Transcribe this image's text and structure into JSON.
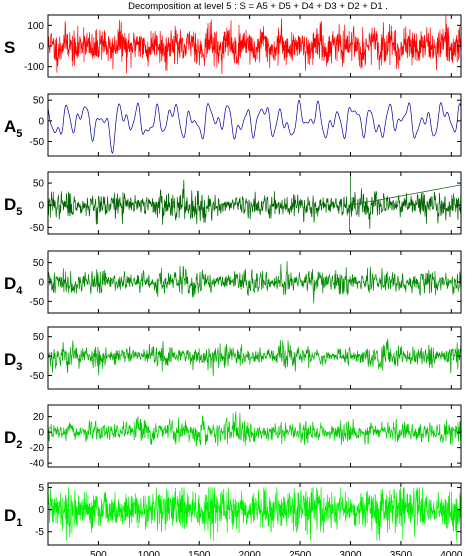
{
  "chart_data": {
    "type": "line",
    "title": "Decomposition at level 5 : S = A5 + D5 + D4 + D3 + D2 + D1 .",
    "xlim": [
      0,
      4096
    ],
    "x_ticks": [
      500,
      1000,
      1500,
      2000,
      2500,
      3000,
      3500,
      4000
    ],
    "series": [
      {
        "name": "S",
        "label_main": "S",
        "label_sub": "",
        "color": "#ff0000",
        "ylim": [
          -150,
          150
        ],
        "y_ticks": [
          100,
          0,
          -100
        ],
        "amplitude": 75,
        "kind": "noise_signal",
        "seed": 11
      },
      {
        "name": "A5",
        "label_main": "A",
        "label_sub": "5",
        "color": "#0000a0",
        "ylim": [
          -85,
          65
        ],
        "y_ticks": [
          50,
          0,
          -50
        ],
        "amplitude": 55,
        "kind": "smooth",
        "seed": 23
      },
      {
        "name": "D5",
        "label_main": "D",
        "label_sub": "5",
        "color": "#006400",
        "ylim": [
          -65,
          75
        ],
        "y_ticks": [
          50,
          0,
          -50
        ],
        "amplitude": 55,
        "kind": "detail",
        "seed": 37,
        "spikes": [
          {
            "x": 3000,
            "value": 70
          },
          {
            "x": 2990,
            "value": -60
          }
        ]
      },
      {
        "name": "D4",
        "label_main": "D",
        "label_sub": "4",
        "color": "#008800",
        "ylim": [
          -80,
          80
        ],
        "y_ticks": [
          50,
          0,
          -50
        ],
        "amplitude": 60,
        "kind": "detail",
        "seed": 41
      },
      {
        "name": "D3",
        "label_main": "D",
        "label_sub": "3",
        "color": "#00a800",
        "ylim": [
          -85,
          75
        ],
        "y_ticks": [
          50,
          0,
          -50
        ],
        "amplitude": 55,
        "kind": "detail",
        "seed": 53
      },
      {
        "name": "D2",
        "label_main": "D",
        "label_sub": "2",
        "color": "#00cc00",
        "ylim": [
          -45,
          35
        ],
        "y_ticks": [
          20,
          0,
          -20,
          -40
        ],
        "amplitude": 25,
        "kind": "detail",
        "seed": 67
      },
      {
        "name": "D1",
        "label_main": "D",
        "label_sub": "1",
        "color": "#00ee00",
        "ylim": [
          -8,
          6
        ],
        "y_ticks": [
          5,
          0,
          -5
        ],
        "amplitude": 4.5,
        "kind": "hf",
        "seed": 79
      }
    ]
  }
}
